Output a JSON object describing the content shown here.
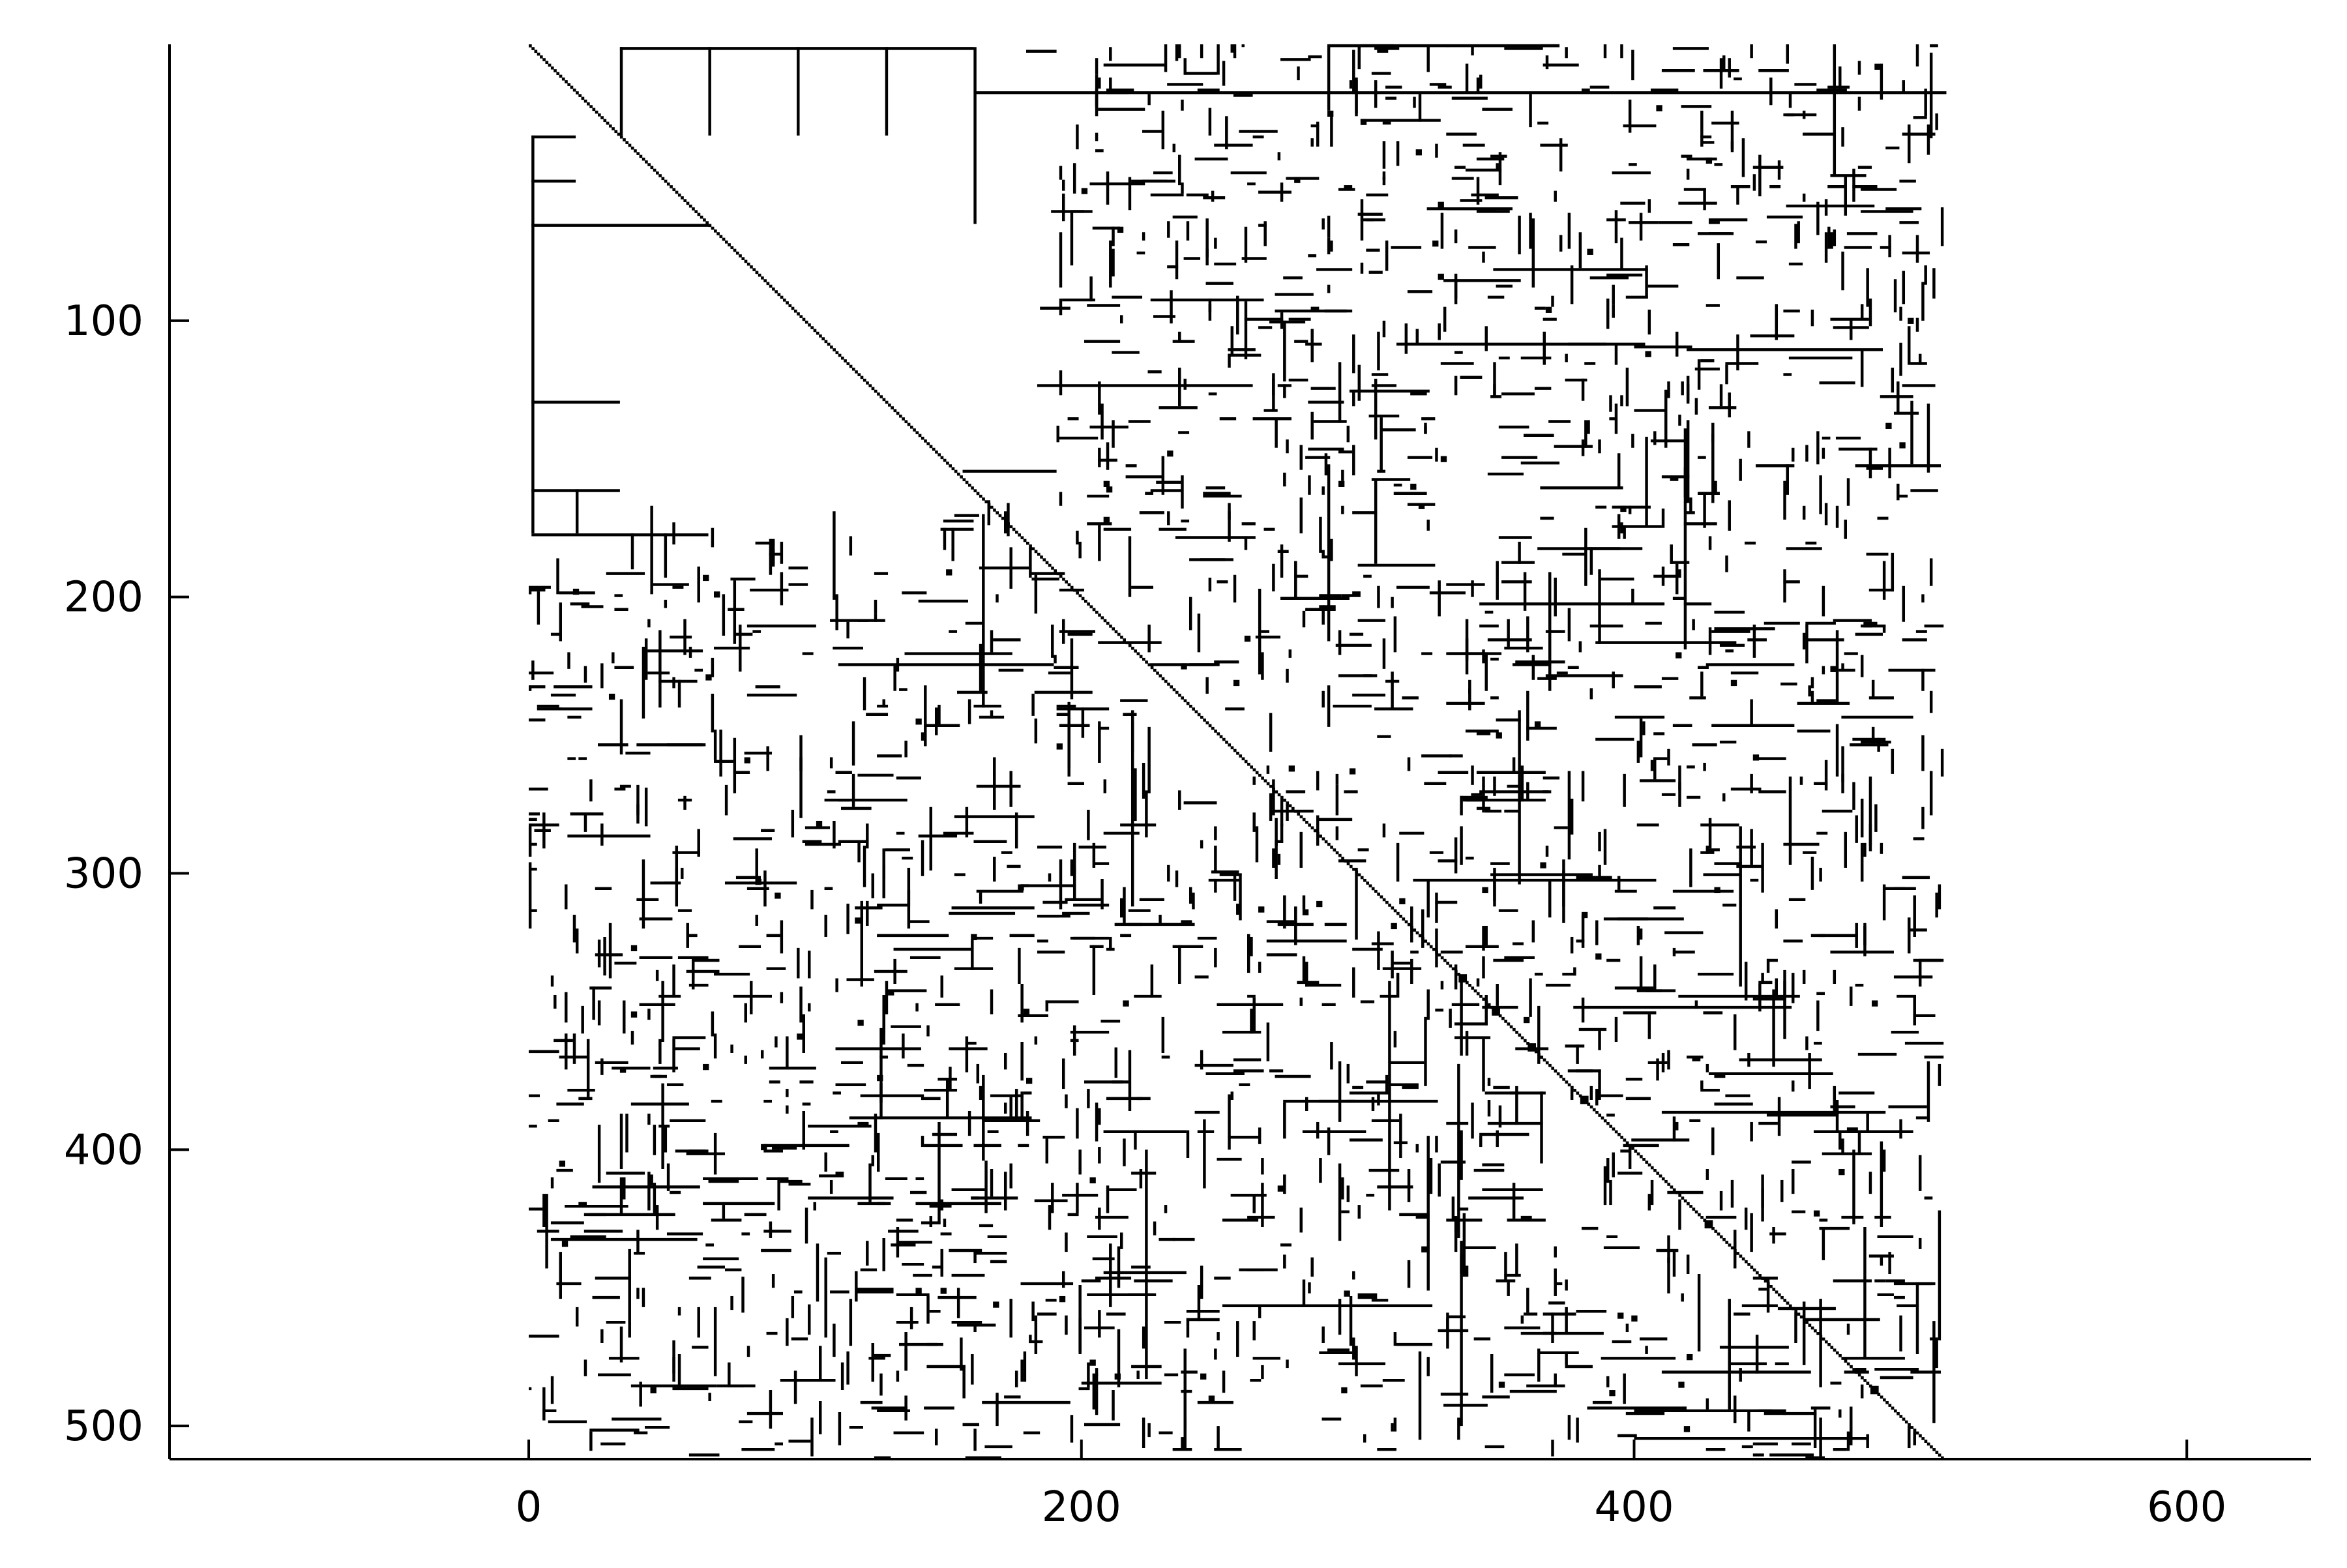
{
  "chart_data": {
    "type": "heatmap",
    "title": "",
    "xlabel": "",
    "ylabel": "",
    "xlim": [
      -130,
      645
    ],
    "ylim": [
      512,
      0
    ],
    "matrix_size": 512,
    "y_reversed": true,
    "xticks": [
      0,
      200,
      400,
      600
    ],
    "yticks": [
      100,
      200,
      300,
      400,
      500
    ],
    "xtick_labels": [
      "0",
      "200",
      "400",
      "600"
    ],
    "ytick_labels": [
      "100",
      "200",
      "300",
      "400",
      "500"
    ],
    "grid": false,
    "legend": "none",
    "structure": "binary sparsity pattern (black = nonzero)",
    "diagonal": "full main diagonal, rows 1–512",
    "colors": {
      "background": "#ffffff",
      "nonzero": "#000000",
      "axis": "#000000"
    }
  }
}
